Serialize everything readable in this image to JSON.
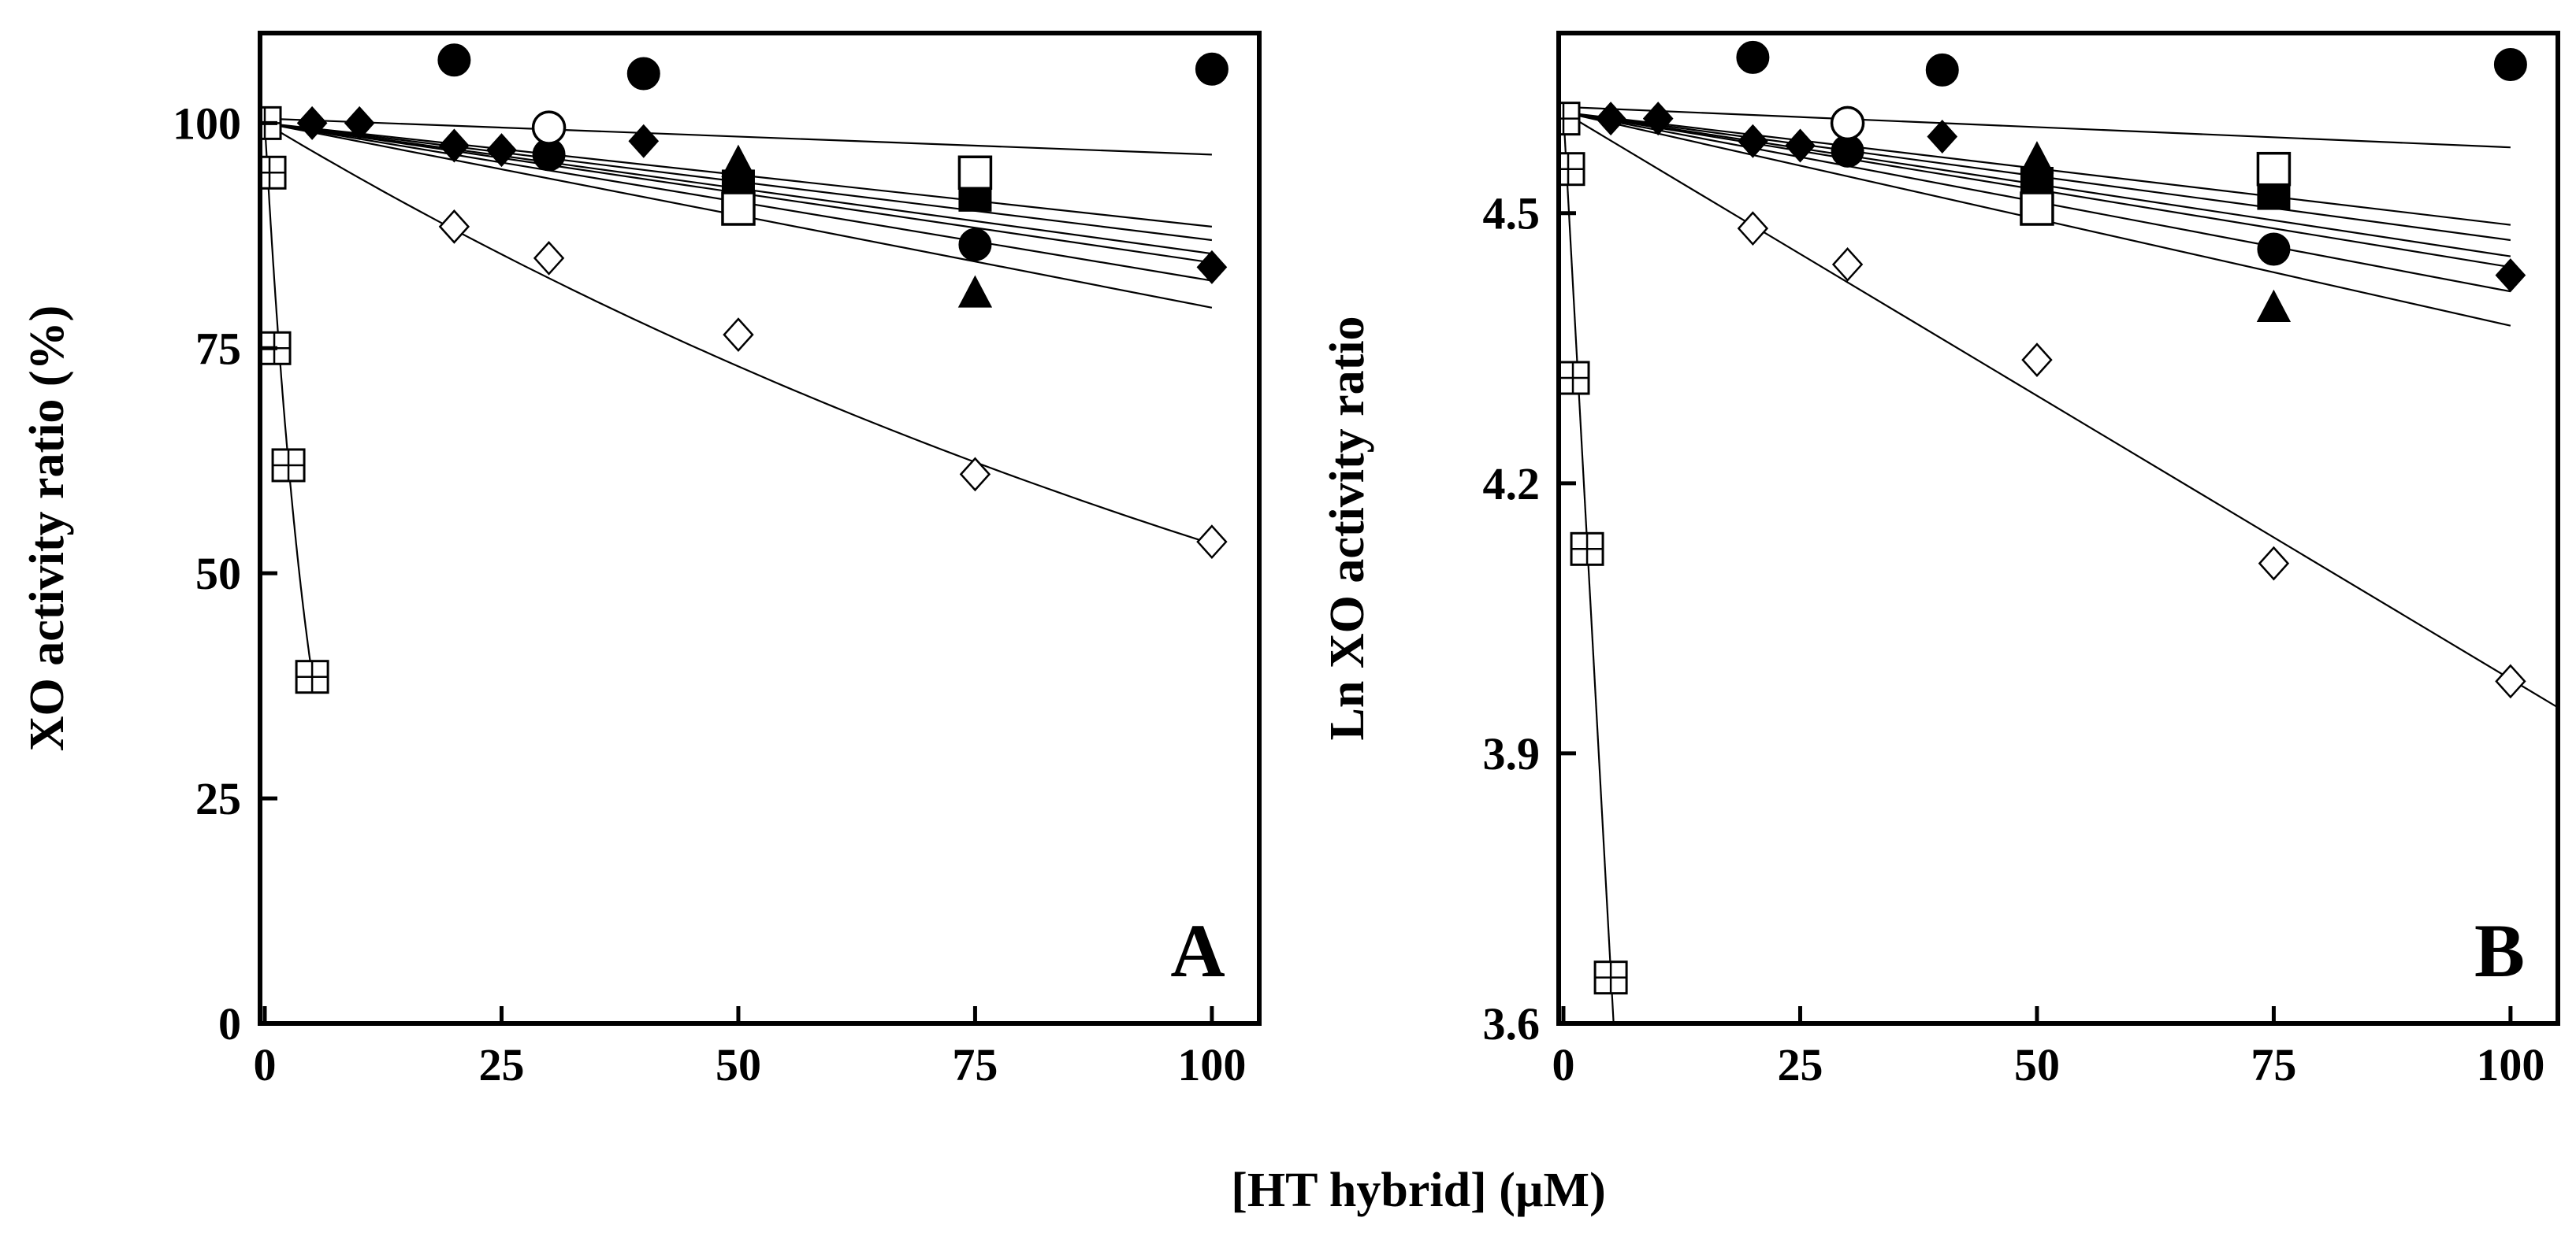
{
  "chart_data": [
    {
      "type": "scatter",
      "panel": "A",
      "ylabel": "XO activity ratio (%)",
      "xlim": [
        -0.5,
        105
      ],
      "ylim": [
        0,
        110
      ],
      "xticks": [
        0,
        25,
        50,
        75,
        100
      ],
      "yticks": [
        0,
        25,
        50,
        75,
        100
      ],
      "series": [
        {
          "name": "filled-circle",
          "marker": "circle-filled",
          "x": [
            20,
            30,
            40,
            75,
            100
          ],
          "y": [
            107,
            96.5,
            105.5,
            86.5,
            106
          ]
        },
        {
          "name": "open-circle",
          "marker": "circle-open",
          "x": [
            30
          ],
          "y": [
            99.5
          ]
        },
        {
          "name": "filled-diamond",
          "marker": "diamond-filled",
          "x": [
            5,
            10,
            20,
            25,
            40,
            100
          ],
          "y": [
            100,
            100,
            97.5,
            97,
            98,
            84
          ]
        },
        {
          "name": "filled-triangle",
          "marker": "triangle-filled",
          "x": [
            50,
            75
          ],
          "y": [
            95.5,
            81
          ]
        },
        {
          "name": "filled-square",
          "marker": "square-filled",
          "x": [
            50,
            75
          ],
          "y": [
            93,
            92
          ]
        },
        {
          "name": "open-square",
          "marker": "square-open",
          "x": [
            50,
            75
          ],
          "y": [
            90.5,
            94.5
          ]
        },
        {
          "name": "open-diamond",
          "marker": "diamond-open",
          "x": [
            20,
            30,
            50,
            75,
            100
          ],
          "y": [
            88.5,
            85,
            76.5,
            61,
            53.5
          ]
        },
        {
          "name": "crossed-square",
          "marker": "square-cross",
          "x": [
            0,
            0.5,
            1,
            2.5,
            5
          ],
          "y": [
            100,
            94.5,
            75,
            62,
            38.5
          ]
        }
      ],
      "fits": [
        {
          "x": [
            0,
            100
          ],
          "y": [
            100.5,
            96.5
          ]
        },
        {
          "x": [
            0,
            100
          ],
          "y": [
            100,
            88.5
          ]
        },
        {
          "x": [
            0,
            100
          ],
          "y": [
            100,
            87
          ]
        },
        {
          "x": [
            0,
            100
          ],
          "y": [
            100,
            85.5
          ]
        },
        {
          "x": [
            0,
            100
          ],
          "y": [
            100,
            84.5
          ]
        },
        {
          "x": [
            0,
            100
          ],
          "y": [
            100,
            82.5
          ]
        },
        {
          "x": [
            0,
            100
          ],
          "y": [
            100,
            79.5
          ]
        },
        {
          "curve": "exponential",
          "y0": 100,
          "k": 0.0063,
          "x_range": [
            0,
            100
          ]
        },
        {
          "curve": "exponential",
          "y0": 100,
          "k": 0.19,
          "x_range": [
            0,
            5
          ]
        }
      ]
    },
    {
      "type": "scatter",
      "panel": "B",
      "ylabel": "Ln XO activity ratio",
      "xlim": [
        -0.5,
        105
      ],
      "ylim": [
        3.6,
        4.7
      ],
      "xticks": [
        0,
        25,
        50,
        75,
        100
      ],
      "yticks": [
        3.6,
        3.9,
        4.2,
        4.5
      ],
      "ytick_labels": [
        "3.6",
        "3.9",
        "4.2",
        "4.5"
      ],
      "series": [
        {
          "name": "filled-circle",
          "marker": "circle-filled",
          "x": [
            20,
            30,
            40,
            75,
            100
          ],
          "y": [
            4.673,
            4.569,
            4.659,
            4.46,
            4.665
          ]
        },
        {
          "name": "open-circle",
          "marker": "circle-open",
          "x": [
            30
          ],
          "y": [
            4.6
          ]
        },
        {
          "name": "filled-diamond",
          "marker": "diamond-filled",
          "x": [
            5,
            10,
            20,
            25,
            40,
            100
          ],
          "y": [
            4.605,
            4.605,
            4.58,
            4.575,
            4.585,
            4.431
          ]
        },
        {
          "name": "filled-triangle",
          "marker": "triangle-filled",
          "x": [
            50,
            75
          ],
          "y": [
            4.559,
            4.394
          ]
        },
        {
          "name": "filled-square",
          "marker": "square-filled",
          "x": [
            50,
            75
          ],
          "y": [
            4.533,
            4.522
          ]
        },
        {
          "name": "open-square",
          "marker": "square-open",
          "x": [
            50,
            75
          ],
          "y": [
            4.505,
            4.549
          ]
        },
        {
          "name": "open-diamond",
          "marker": "diamond-open",
          "x": [
            20,
            30,
            50,
            75,
            100
          ],
          "y": [
            4.483,
            4.443,
            4.337,
            4.111,
            3.98
          ]
        },
        {
          "name": "crossed-square",
          "marker": "square-cross",
          "x": [
            0,
            0.5,
            1,
            2.5,
            5
          ],
          "y": [
            4.605,
            4.549,
            4.317,
            4.127,
            3.651
          ]
        }
      ],
      "fits": [
        {
          "x": [
            0,
            100
          ],
          "y": [
            4.618,
            4.573
          ]
        },
        {
          "x": [
            0,
            100
          ],
          "y": [
            4.612,
            4.487
          ]
        },
        {
          "x": [
            0,
            100
          ],
          "y": [
            4.612,
            4.47
          ]
        },
        {
          "x": [
            0,
            100
          ],
          "y": [
            4.612,
            4.452
          ]
        },
        {
          "x": [
            0,
            100
          ],
          "y": [
            4.612,
            4.44
          ]
        },
        {
          "x": [
            0,
            100
          ],
          "y": [
            4.612,
            4.413
          ]
        },
        {
          "x": [
            0,
            100
          ],
          "y": [
            4.612,
            4.375
          ]
        },
        {
          "x": [
            0,
            105
          ],
          "y": [
            4.612,
            3.951
          ]
        },
        {
          "x": [
            0,
            5.3
          ],
          "y": [
            4.612,
            3.6
          ]
        }
      ]
    }
  ],
  "figure": {
    "xlabel": "[HT hybrid] (µM)",
    "xtick_labels": [
      "0",
      "25",
      "50",
      "75",
      "100"
    ],
    "panels": {
      "A": {
        "letter": "A",
        "ytick_labels": [
          "0",
          "25",
          "50",
          "75",
          "100"
        ]
      },
      "B": {
        "letter": "B",
        "ytick_labels": [
          "3.6",
          "3.9",
          "4.2",
          "4.5"
        ]
      }
    }
  }
}
